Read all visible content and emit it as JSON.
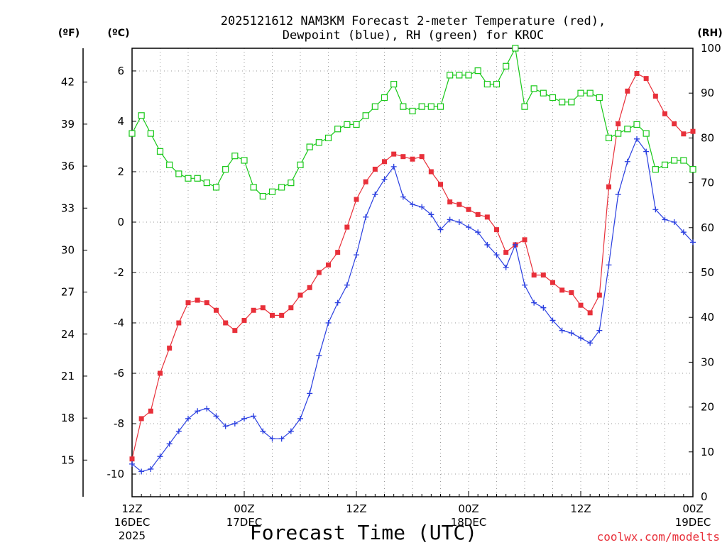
{
  "chart_data": {
    "type": "line",
    "title_line1": "2025121612 NAM3KM Forecast 2-meter Temperature (red),",
    "title_line2": "Dewpoint (blue), RH (green) for KROC",
    "xlabel": "Forecast Time (UTC)",
    "unit_f": "(ºF)",
    "unit_c": "(ºC)",
    "unit_rh": "(RH)",
    "credit": "coolwx.com/modelts",
    "hours": [
      0,
      1,
      2,
      3,
      4,
      5,
      6,
      7,
      8,
      9,
      10,
      11,
      12,
      13,
      14,
      15,
      16,
      17,
      18,
      19,
      20,
      21,
      22,
      23,
      24,
      25,
      26,
      27,
      28,
      29,
      30,
      31,
      32,
      33,
      34,
      35,
      36,
      37,
      38,
      39,
      40,
      41,
      42,
      43,
      44,
      45,
      46,
      47,
      48,
      49,
      50,
      51,
      52,
      53,
      54,
      55,
      56,
      57,
      58,
      59,
      60
    ],
    "x_ticks": [
      {
        "hour": 0,
        "l1": "12Z",
        "l2": "16DEC",
        "l3": "2025"
      },
      {
        "hour": 12,
        "l1": "00Z",
        "l2": "17DEC",
        "l3": ""
      },
      {
        "hour": 24,
        "l1": "12Z",
        "l2": "",
        "l3": ""
      },
      {
        "hour": 36,
        "l1": "00Z",
        "l2": "18DEC",
        "l3": ""
      },
      {
        "hour": 48,
        "l1": "12Z",
        "l2": "",
        "l3": ""
      },
      {
        "hour": 60,
        "l1": "00Z",
        "l2": "19DEC",
        "l3": ""
      }
    ],
    "c_ticks": [
      "-10",
      "-8",
      "-6",
      "-4",
      "-2",
      "0",
      "2",
      "4",
      "6"
    ],
    "f_ticks": [
      "15",
      "18",
      "21",
      "24",
      "27",
      "30",
      "33",
      "36",
      "39",
      "42"
    ],
    "rh_ticks": [
      "0",
      "10",
      "20",
      "30",
      "40",
      "50",
      "60",
      "70",
      "80",
      "90",
      "100"
    ],
    "c_range": [
      -10.9,
      6.9
    ],
    "rh_range": [
      0,
      100
    ],
    "series": [
      {
        "name": "Temperature",
        "color": "#e8303a",
        "marker": "filled-square",
        "values": [
          -9.4,
          -7.8,
          -7.5,
          -6.0,
          -5.0,
          -4.0,
          -3.2,
          -3.1,
          -3.2,
          -3.5,
          -4.0,
          -4.3,
          -3.9,
          -3.5,
          -3.4,
          -3.7,
          -3.7,
          -3.4,
          -2.9,
          -2.6,
          -2.0,
          -1.7,
          -1.2,
          -0.2,
          0.9,
          1.6,
          2.1,
          2.4,
          2.7,
          2.6,
          2.5,
          2.6,
          2.0,
          1.5,
          0.8,
          0.7,
          0.5,
          0.3,
          0.2,
          -0.3,
          -1.2,
          -0.9,
          -0.7,
          -2.1,
          -2.1,
          -2.4,
          -2.7,
          -2.8,
          -3.3,
          -3.6,
          -2.9,
          1.4,
          3.9,
          5.2,
          5.9,
          5.7,
          5.0,
          4.3,
          3.9,
          3.5,
          3.6
        ]
      },
      {
        "name": "Dewpoint",
        "color": "#2a3fe0",
        "marker": "plus",
        "values": [
          -9.6,
          -9.9,
          -9.8,
          -9.3,
          -8.8,
          -8.3,
          -7.8,
          -7.5,
          -7.4,
          -7.7,
          -8.1,
          -8.0,
          -7.8,
          -7.7,
          -8.3,
          -8.6,
          -8.6,
          -8.3,
          -7.8,
          -6.8,
          -5.3,
          -4.0,
          -3.2,
          -2.5,
          -1.3,
          0.2,
          1.1,
          1.7,
          2.2,
          1.0,
          0.7,
          0.6,
          0.3,
          -0.3,
          0.1,
          0.0,
          -0.2,
          -0.4,
          -0.9,
          -1.3,
          -1.8,
          -0.9,
          -2.5,
          -3.2,
          -3.4,
          -3.9,
          -4.3,
          -4.4,
          -4.6,
          -4.8,
          -4.3,
          -1.7,
          1.1,
          2.4,
          3.3,
          2.8,
          0.5,
          0.1,
          0.0,
          -0.4,
          -0.8
        ]
      },
      {
        "name": "RH",
        "color": "#18c818",
        "marker": "open-square",
        "values": [
          81,
          85,
          81,
          77,
          74,
          72,
          71,
          71,
          70,
          69,
          73,
          76,
          75,
          69,
          67,
          68,
          69,
          70,
          74,
          78,
          79,
          80,
          82,
          83,
          83,
          85,
          87,
          89,
          92,
          87,
          86,
          87,
          87,
          87,
          94,
          94,
          94,
          95,
          92,
          92,
          96,
          100,
          87,
          91,
          90,
          89,
          88,
          88,
          90,
          90,
          89,
          80,
          81,
          82,
          83,
          81,
          73,
          74,
          75,
          75,
          73
        ]
      }
    ]
  }
}
